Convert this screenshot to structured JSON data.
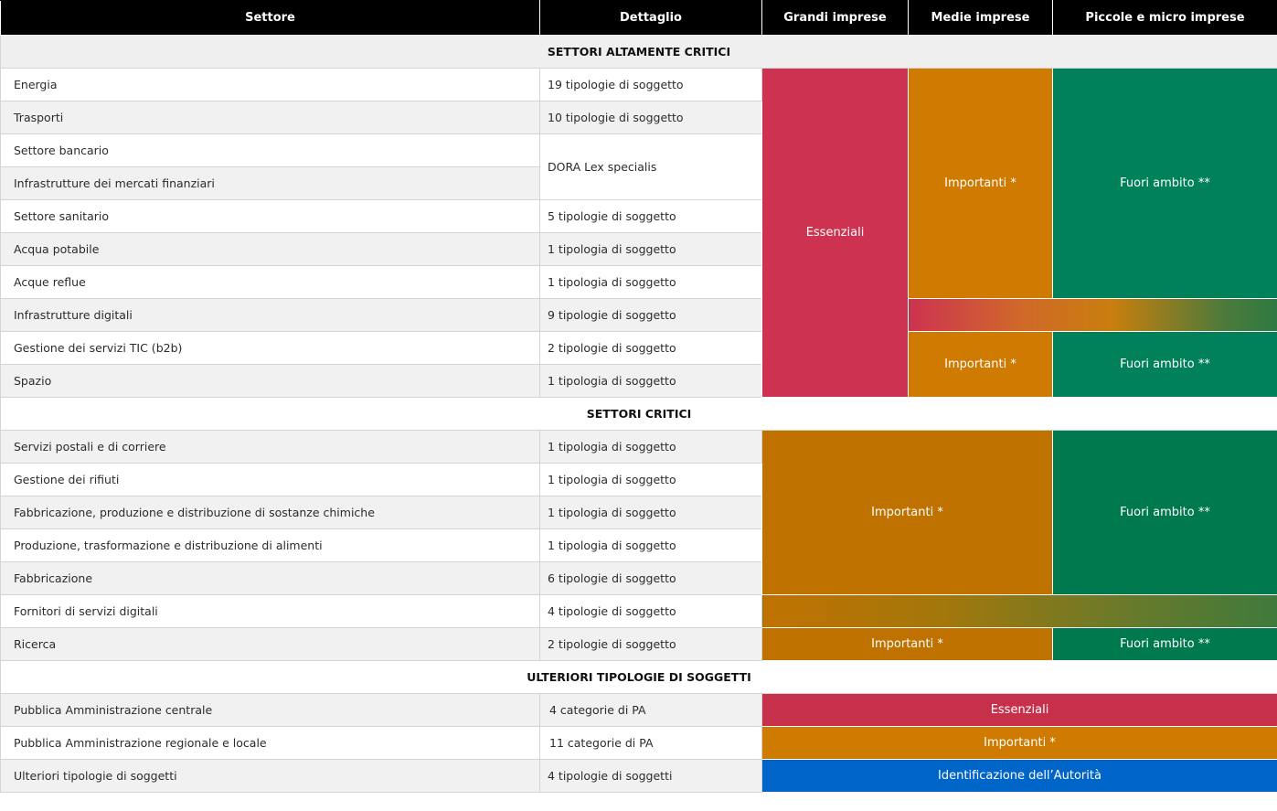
{
  "header": {
    "sector": "Settore",
    "detail": "Dettaglio",
    "large": "Grandi imprese",
    "medium": "Medie imprese",
    "small": "Piccole e micro imprese"
  },
  "sections": {
    "highly_critical": "SETTORI ALTAMENTE CRITICI",
    "critical": "SETTORI CRITICI",
    "further": "ULTERIORI TIPOLOGIE DI SOGGETTI"
  },
  "rows_high": [
    {
      "sector": "Energia",
      "detail": "19 tipologie di soggetto"
    },
    {
      "sector": "Trasporti",
      "detail": "10 tipologie di soggetto"
    },
    {
      "sector": "Settore bancario",
      "detail": "DORA Lex specialis"
    },
    {
      "sector": "Infrastrutture dei mercati finanziari",
      "detail": ""
    },
    {
      "sector": "Settore sanitario",
      "detail": "5 tipologie di soggetto"
    },
    {
      "sector": "Acqua potabile",
      "detail": "1 tipologia di soggetto"
    },
    {
      "sector": "Acque reflue",
      "detail": "1 tipologia di soggetto"
    },
    {
      "sector": "Infrastrutture digitali",
      "detail": "9 tipologie di soggetto"
    },
    {
      "sector": "Gestione dei servizi TIC (b2b)",
      "detail": "2 tipologie di soggetto"
    },
    {
      "sector": "Spazio",
      "detail": "1 tipologia di soggetto"
    }
  ],
  "rows_critical": [
    {
      "sector": "Servizi postali e di corriere",
      "detail": "1 tipologia di soggetto"
    },
    {
      "sector": "Gestione dei rifiuti",
      "detail": "1 tipologia di soggetto"
    },
    {
      "sector": "Fabbricazione, produzione e distribuzione di sostanze chimiche",
      "detail": "1 tipologia di soggetto"
    },
    {
      "sector": "Produzione, trasformazione e distribuzione di alimenti",
      "detail": "1 tipologia di soggetto"
    },
    {
      "sector": "Fabbricazione",
      "detail": "6 tipologie di soggetto"
    },
    {
      "sector": "Fornitori di servizi digitali",
      "detail": "4 tipologie di soggetto"
    },
    {
      "sector": "Ricerca",
      "detail": "2 tipologie di soggetto"
    }
  ],
  "rows_further": [
    {
      "sector": "Pubblica Amministrazione centrale",
      "detail": "4 categorie di PA",
      "category": "Essenziali"
    },
    {
      "sector": "Pubblica Amministrazione regionale e locale",
      "detail": "11 categorie di PA",
      "category": "Importanti *"
    },
    {
      "sector": "Ulteriori tipologie di soggetti",
      "detail": "4 tipologie di soggetti",
      "category": "Identificazione dell’Autorità"
    }
  ],
  "categories": {
    "essential": "Essenziali",
    "important": "Importanti *",
    "out_of_scope": "Fuori ambito **"
  },
  "colors": {
    "essential_red": "#cd3350",
    "important_orange": "#cf7a00",
    "out_of_scope_green": "#00815a",
    "authority_blue": "#0065c8",
    "header_black": "#000000"
  }
}
